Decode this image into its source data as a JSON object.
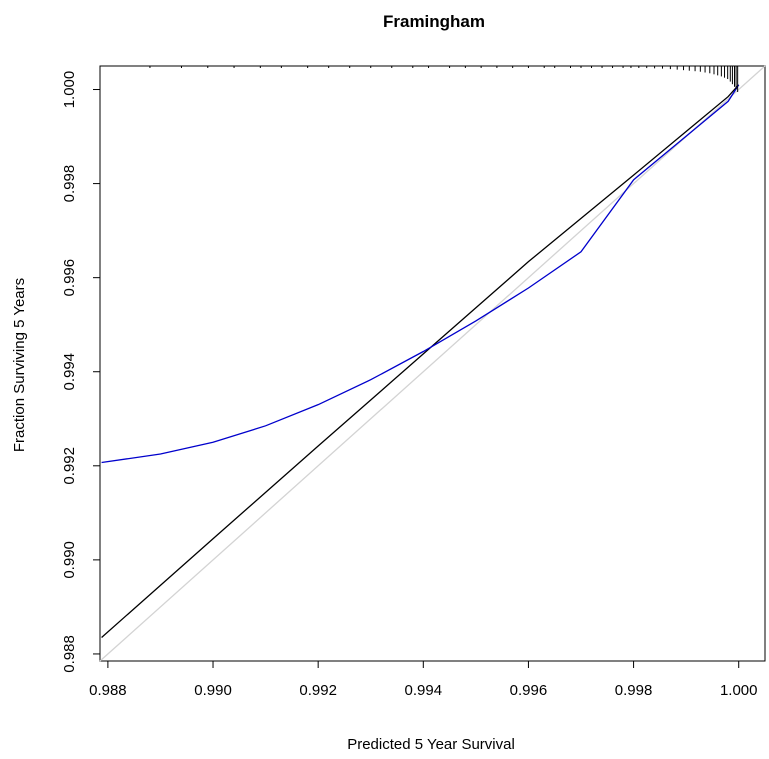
{
  "chart_data": {
    "type": "line",
    "title": "Framingham",
    "xlabel": "Predicted 5 Year Survival",
    "ylabel": "Fraction Surviving 5 Years",
    "xlim": [
      0.98785,
      1.0005
    ],
    "ylim": [
      0.98785,
      1.0005
    ],
    "x_ticks": [
      "0.988",
      "0.990",
      "0.992",
      "0.994",
      "0.996",
      "0.998",
      "1.000"
    ],
    "y_ticks": [
      "0.988",
      "0.990",
      "0.992",
      "0.994",
      "0.996",
      "0.998",
      "1.000"
    ],
    "grid": false,
    "series": [
      {
        "color": "#d3d3d3",
        "points": [
          [
            0.98785,
            0.98785
          ],
          [
            1.0005,
            1.0005
          ]
        ]
      },
      {
        "color": "#000000",
        "points": [
          [
            0.98788,
            0.98835
          ],
          [
            0.99,
            0.99045
          ],
          [
            0.992,
            0.99242
          ],
          [
            0.994,
            0.99438
          ],
          [
            0.996,
            0.99634
          ],
          [
            0.998,
            0.99818
          ],
          [
            0.9998,
            0.99985
          ],
          [
            1.0,
            1.0001
          ]
        ]
      },
      {
        "color": "#0000cc",
        "points": [
          [
            0.98788,
            0.99207
          ],
          [
            0.989,
            0.99225
          ],
          [
            0.99,
            0.9925
          ],
          [
            0.991,
            0.99285
          ],
          [
            0.992,
            0.9933
          ],
          [
            0.993,
            0.99383
          ],
          [
            0.994,
            0.99443
          ],
          [
            0.995,
            0.99508
          ],
          [
            0.996,
            0.99578
          ],
          [
            0.997,
            0.99655
          ],
          [
            0.998,
            0.99808
          ],
          [
            0.9998,
            0.99975
          ],
          [
            1.0,
            1.0001
          ]
        ]
      }
    ],
    "rug_x": [
      0.9888,
      0.9894,
      0.9899,
      0.9904,
      0.9909,
      0.9913,
      0.9918,
      0.9922,
      0.9926,
      0.993,
      0.9934,
      0.9938,
      0.9941,
      0.9945,
      0.9948,
      0.9951,
      0.9954,
      0.9957,
      0.996,
      0.9963,
      0.9965,
      0.9968,
      0.997,
      0.9972,
      0.9974,
      0.9976,
      0.9978,
      0.99795,
      0.9981,
      0.99825,
      0.9984,
      0.99855,
      0.9987,
      0.99883,
      0.99895,
      0.99906,
      0.99917,
      0.99927,
      0.99936,
      0.99945,
      0.99953,
      0.9996,
      0.99967,
      0.99973,
      0.99979,
      0.99984,
      0.99988,
      0.99992,
      0.99995,
      0.99998
    ],
    "rug_heights": [
      0.02,
      0.02,
      0.02,
      0.02,
      0.02,
      0.02,
      0.02,
      0.02,
      0.02,
      0.02,
      0.02,
      0.02,
      0.02,
      0.02,
      0.02,
      0.02,
      0.03,
      0.03,
      0.03,
      0.03,
      0.03,
      0.04,
      0.04,
      0.04,
      0.05,
      0.05,
      0.06,
      0.06,
      0.07,
      0.08,
      0.09,
      0.1,
      0.12,
      0.14,
      0.16,
      0.18,
      0.2,
      0.22,
      0.25,
      0.28,
      0.32,
      0.36,
      0.4,
      0.45,
      0.5,
      0.6,
      0.7,
      0.8,
      0.9,
      1.0
    ]
  }
}
